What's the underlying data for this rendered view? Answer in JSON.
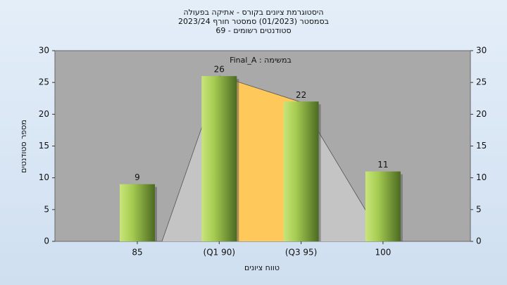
{
  "chart_data": {
    "type": "bar",
    "title": [
      "היסטוגרמת ציונים בקורס - אתיקה בפעולה",
      "בסמסטר (01/2023) סמסטר חורף 2023/24",
      "סטודנטים רשומים - 69"
    ],
    "annotation": "במשימה : Final_A",
    "x_label": "טווח ציונים",
    "y_label": "מספר סטודנטים",
    "categories": [
      "85",
      "(Q1 90)",
      "(Q3 95)",
      "100"
    ],
    "values": [
      9,
      26,
      22,
      11
    ],
    "ylim": [
      0,
      30
    ],
    "yticks": [
      0,
      5,
      10,
      15,
      20,
      25,
      30
    ],
    "y2lim": [
      0,
      30
    ],
    "y2ticks": [
      0,
      5,
      10,
      15,
      20,
      25,
      30
    ]
  }
}
